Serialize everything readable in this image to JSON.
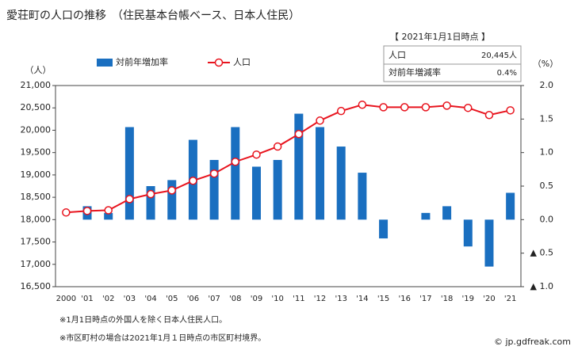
{
  "chart_data": {
    "type": "combo",
    "title": "愛荘町の人口の推移　（住民基本台帳ベース、日本人住民）",
    "y_unit": "（人）",
    "y2_unit": "（%）",
    "categories": [
      "2000",
      "'01",
      "'02",
      "'03",
      "'04",
      "'05",
      "'06",
      "'07",
      "'08",
      "'09",
      "'10",
      "'11",
      "'12",
      "'13",
      "'14",
      "'15",
      "'16",
      "'17",
      "'18",
      "'19",
      "'20",
      "'21"
    ],
    "series": [
      {
        "name": "対前年増加率",
        "type": "bar",
        "axis": "y2",
        "color": "#1a6fc0",
        "values": [
          null,
          0.2,
          0.1,
          1.38,
          0.5,
          0.59,
          1.19,
          0.89,
          1.38,
          0.79,
          0.89,
          1.58,
          1.38,
          1.09,
          0.7,
          -0.28,
          0,
          0.1,
          0.2,
          -0.4,
          -0.7,
          0.4
        ]
      },
      {
        "name": "人口",
        "type": "line",
        "color": "#e8141e",
        "values": [
          18160,
          18195,
          18210,
          18460,
          18570,
          18655,
          18870,
          19030,
          19295,
          19455,
          19635,
          19915,
          20215,
          20430,
          20570,
          20515,
          20515,
          20515,
          20550,
          20500,
          20340,
          20445
        ]
      }
    ],
    "ylim": [
      16500,
      21000
    ],
    "yticks": [
      {
        "value": 16500,
        "label": "16,500"
      },
      {
        "value": 17000,
        "label": "17,000"
      },
      {
        "value": 17500,
        "label": "17,500"
      },
      {
        "value": 18000,
        "label": "18,000"
      },
      {
        "value": 18500,
        "label": "18,500"
      },
      {
        "value": 19000,
        "label": "19,000"
      },
      {
        "value": 19500,
        "label": "19,500"
      },
      {
        "value": 20000,
        "label": "20,000"
      },
      {
        "value": 20500,
        "label": "20,500"
      },
      {
        "value": 21000,
        "label": "21,000"
      }
    ],
    "y2lim": [
      -1.0,
      2.0
    ],
    "y2ticks": [
      {
        "value": 2.0,
        "label": "2.0"
      },
      {
        "value": 1.5,
        "label": "1.5"
      },
      {
        "value": 1.0,
        "label": "1.0"
      },
      {
        "value": 0.5,
        "label": "0.5"
      },
      {
        "value": 0,
        "label": "0.0"
      },
      {
        "value": -0.5,
        "label": "▲ 0.5"
      },
      {
        "value": -1.0,
        "label": "▲ 1.0"
      }
    ],
    "grid": false,
    "info": {
      "heading": "【 2021年1月1日時点 】",
      "rows": [
        [
          "人口",
          "20,445人"
        ],
        [
          "対前年増減率",
          "0.4%"
        ]
      ]
    },
    "notes": [
      "※1月1日時点の外国人を除く日本人住民人口。",
      "※市区町村の場合は2021年1月１日時点の市区町村境界。"
    ],
    "credit": "© jp.gdfreak.com"
  }
}
